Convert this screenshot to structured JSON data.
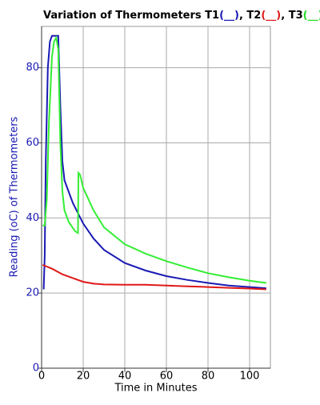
{
  "chart_data": {
    "type": "line",
    "title_parts": [
      {
        "text": "Variation of Thermometers T1",
        "color": "#000000"
      },
      {
        "text": "(__)",
        "color": "#1a1ab4"
      },
      {
        "text": ", T2",
        "color": "#000000"
      },
      {
        "text": "(__)",
        "color": "#e01818"
      },
      {
        "text": ", T3",
        "color": "#000000"
      },
      {
        "text": "(__)",
        "color": "#22dd22"
      }
    ],
    "x_label": "Time in Minutes",
    "y_label": "Reading (oC) of Thermometers",
    "xlim": [
      0,
      110
    ],
    "ylim": [
      0,
      91
    ],
    "xticks": [
      0,
      20,
      40,
      60,
      80,
      100
    ],
    "yticks": [
      0,
      20,
      40,
      60,
      80
    ],
    "grid": true,
    "series": [
      {
        "name": "T1",
        "color": "#1a1ab4",
        "x": [
          1,
          1.5,
          2,
          3,
          4,
          5,
          8,
          9,
          10,
          11,
          15,
          20,
          25,
          30,
          40,
          50,
          60,
          70,
          80,
          90,
          100,
          108
        ],
        "values": [
          21,
          30,
          55,
          80,
          87,
          88.5,
          88.5,
          70,
          55,
          50,
          44,
          38.5,
          34.5,
          31.5,
          28,
          26,
          24.5,
          23.5,
          22.7,
          22,
          21.6,
          21.3
        ]
      },
      {
        "name": "T2",
        "color": "#e01818",
        "x": [
          0.5,
          5,
          10,
          15,
          20,
          25,
          30,
          40,
          50,
          60,
          70,
          80,
          90,
          100,
          108
        ],
        "values": [
          27.5,
          26.5,
          25,
          24,
          23,
          22.5,
          22.3,
          22.2,
          22.2,
          22,
          21.8,
          21.6,
          21.4,
          21.2,
          21
        ]
      },
      {
        "name": "T3",
        "color": "#33ee33",
        "x": [
          0.5,
          1.5,
          2.5,
          3.5,
          5,
          6,
          7,
          8,
          9,
          10,
          11,
          13,
          16,
          17.5,
          17.7,
          18.5,
          20,
          25,
          30,
          40,
          50,
          60,
          70,
          80,
          90,
          100,
          108
        ],
        "values": [
          38,
          38,
          45,
          65,
          83,
          87,
          88,
          85,
          60,
          47,
          42,
          39,
          36.5,
          36,
          52,
          51.5,
          48,
          42,
          37.5,
          33,
          30.5,
          28.5,
          26.8,
          25.3,
          24.2,
          23.3,
          22.7
        ]
      }
    ]
  }
}
